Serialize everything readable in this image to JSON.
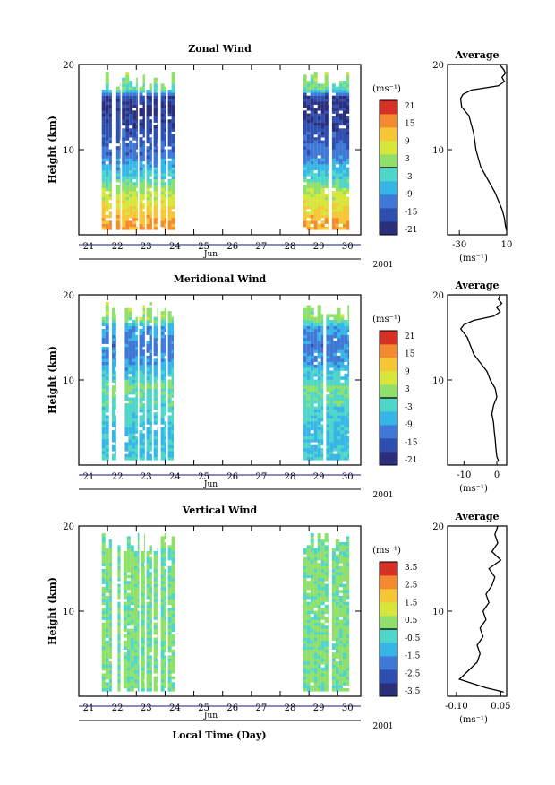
{
  "figure": {
    "xlabel": "Local Time (Day)",
    "month_label": "Jun",
    "year_label": "2001",
    "day_ticks": [
      "21",
      "22",
      "23",
      "24",
      "25",
      "26",
      "27",
      "28",
      "29",
      "30"
    ],
    "ylabel": "Height (km)",
    "y_ticks": [
      "10",
      "20"
    ],
    "unit_label": "(ms⁻¹)",
    "average_title": "Average"
  },
  "colors": {
    "colormap": [
      "#2b2f7a",
      "#2e4fb0",
      "#3f78d6",
      "#35b6e6",
      "#4fd6c8",
      "#8fe06a",
      "#d6e63a",
      "#f7c637",
      "#f38a2f",
      "#d73027"
    ]
  },
  "chart_data": [
    {
      "type": "heatmap",
      "title": "Zonal Wind",
      "colorbar_ticks": [
        "21",
        "15",
        "9",
        "3",
        "-3",
        "-9",
        "-15",
        "-21"
      ],
      "color_range": [
        -24,
        24
      ],
      "data_columns_day": [
        [
          21.8,
          22.15
        ],
        [
          22.3,
          22.45
        ],
        [
          22.5,
          23.05
        ],
        [
          23.1,
          23.3
        ],
        [
          23.35,
          23.55
        ],
        [
          23.6,
          23.75
        ],
        [
          23.85,
          24.05
        ],
        [
          24.1,
          24.35
        ],
        [
          28.8,
          29.7
        ],
        [
          29.8,
          30.4
        ]
      ],
      "profile_levels": [
        {
          "km": 1,
          "value": 15
        },
        {
          "km": 3,
          "value": 10
        },
        {
          "km": 5,
          "value": 4
        },
        {
          "km": 6.5,
          "value": -3
        },
        {
          "km": 9,
          "value": -12
        },
        {
          "km": 12,
          "value": -17
        },
        {
          "km": 14.5,
          "value": -21
        },
        {
          "km": 16,
          "value": -18
        },
        {
          "km": 17,
          "value": 0
        },
        {
          "km": 18,
          "value": 2
        },
        {
          "km": 19.5,
          "value": 6
        }
      ],
      "average": {
        "height_km": [
          0.5,
          1,
          2,
          3,
          4,
          5,
          6,
          7,
          8,
          9,
          10,
          11,
          12,
          13,
          14,
          15,
          16,
          16.5,
          17,
          17.5,
          18,
          18.5,
          19,
          19.5,
          20
        ],
        "values": [
          10,
          9,
          8,
          6,
          3,
          0,
          -4,
          -8,
          -12,
          -14,
          -16,
          -17,
          -18,
          -20,
          -22,
          -28,
          -29,
          -27,
          -20,
          3,
          8,
          6,
          9,
          7,
          4
        ],
        "xlim": [
          -40,
          10
        ],
        "x_ticks": [
          "-30",
          "10"
        ],
        "x_tick_values": [
          -30,
          10
        ]
      }
    },
    {
      "type": "heatmap",
      "title": "Meridional Wind",
      "colorbar_ticks": [
        "21",
        "15",
        "9",
        "3",
        "-3",
        "-9",
        "-15",
        "-21"
      ],
      "color_range": [
        -24,
        24
      ],
      "data_columns_day": [
        [
          21.8,
          22.05
        ],
        [
          22.15,
          22.3
        ],
        [
          22.6,
          23.05
        ],
        [
          23.1,
          23.3
        ],
        [
          23.35,
          23.55
        ],
        [
          23.6,
          23.75
        ],
        [
          23.85,
          24.05
        ],
        [
          24.1,
          24.3
        ],
        [
          28.8,
          29.5
        ],
        [
          29.6,
          30.4
        ]
      ],
      "profile_levels": [
        {
          "km": 1,
          "value": -5
        },
        {
          "km": 4,
          "value": -6
        },
        {
          "km": 7,
          "value": -2
        },
        {
          "km": 9,
          "value": 1
        },
        {
          "km": 10,
          "value": -4
        },
        {
          "km": 12,
          "value": -9
        },
        {
          "km": 14,
          "value": -12
        },
        {
          "km": 16,
          "value": -8
        },
        {
          "km": 17,
          "value": 2
        },
        {
          "km": 19,
          "value": 4
        }
      ],
      "average": {
        "height_km": [
          0.5,
          1,
          2,
          3,
          4,
          5,
          6,
          7,
          8,
          9,
          10,
          11,
          12,
          13,
          14,
          15,
          16,
          16.5,
          17,
          17.5,
          18,
          18.5,
          19,
          19.5,
          20
        ],
        "values": [
          0.5,
          0,
          -0.3,
          -0.5,
          -0.8,
          -1,
          -1.5,
          -1,
          0,
          -0.5,
          -2,
          -3,
          -5,
          -7,
          -8,
          -9,
          -11,
          -10,
          -7,
          -1,
          1,
          0,
          1.5,
          0.5,
          1
        ],
        "xlim": [
          -15,
          3
        ],
        "x_ticks": [
          "-10",
          "0"
        ],
        "x_tick_values": [
          -10,
          0
        ]
      }
    },
    {
      "type": "heatmap",
      "title": "Vertical Wind",
      "colorbar_ticks": [
        "3.5",
        "2.5",
        "1.5",
        "0.5",
        "-0.5",
        "-1.5",
        "-2.5",
        "-3.5"
      ],
      "color_range": [
        -4,
        4
      ],
      "data_columns_day": [
        [
          21.8,
          22.15
        ],
        [
          22.35,
          22.45
        ],
        [
          22.55,
          23.1
        ],
        [
          23.15,
          23.3
        ],
        [
          23.35,
          23.55
        ],
        [
          23.6,
          23.75
        ],
        [
          23.85,
          24.05
        ],
        [
          24.1,
          24.35
        ],
        [
          28.8,
          29.7
        ],
        [
          29.8,
          30.4
        ]
      ],
      "profile_levels": [
        {
          "km": 1,
          "value": 0.2
        },
        {
          "km": 10,
          "value": 0.1
        },
        {
          "km": 20,
          "value": 0.2
        }
      ],
      "average": {
        "height_km": [
          0.5,
          1,
          2,
          3,
          4,
          5,
          6,
          7,
          8,
          9,
          10,
          11,
          12,
          13,
          14,
          15,
          16,
          17,
          18,
          19,
          20
        ],
        "values": [
          0.06,
          0.0,
          -0.09,
          -0.06,
          -0.03,
          -0.02,
          -0.03,
          -0.01,
          -0.02,
          0.0,
          -0.01,
          0.01,
          0.0,
          0.02,
          0.03,
          0.01,
          0.05,
          0.02,
          0.04,
          0.03,
          0.04
        ],
        "xlim": [
          -0.13,
          0.07
        ],
        "x_ticks": [
          "-0.10",
          "0.05"
        ],
        "x_tick_values": [
          -0.1,
          0.05
        ]
      }
    }
  ]
}
